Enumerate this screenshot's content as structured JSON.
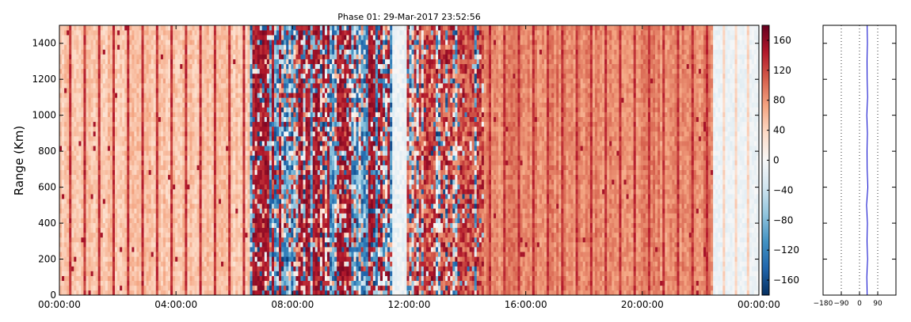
{
  "chart_data": [
    {
      "type": "heatmap",
      "title": "Phase 01: 29-Mar-2017 23:52:56",
      "xlabel": "",
      "ylabel": "Range (Km)",
      "xlim": [
        "00:00:00",
        "00:00:00"
      ],
      "x_ticks": [
        "00:00:00",
        "04:00:00",
        "08:00:00",
        "12:00:00",
        "16:00:00",
        "20:00:00",
        "00:00:00"
      ],
      "ylim": [
        0,
        1500
      ],
      "y_ticks": [
        0,
        200,
        400,
        600,
        800,
        1000,
        1200,
        1400
      ],
      "colorbar": {
        "cmap": "RdBu_r",
        "range": [
          -180,
          180
        ],
        "ticks": [
          -160,
          -120,
          -80,
          -40,
          0,
          40,
          80,
          120,
          160
        ]
      },
      "bands_approx_phase_deg": [
        {
          "from_hour": 0.0,
          "to_hour": 6.5,
          "mean": 45,
          "note": "light red with darker red stripes ~ every 0.5h"
        },
        {
          "from_hour": 6.5,
          "to_hour": 11.4,
          "mean": 0,
          "note": "highly mixed red/blue columns"
        },
        {
          "from_hour": 11.4,
          "to_hour": 14.5,
          "mean": 90,
          "note": "mixed mostly red"
        },
        {
          "from_hour": 14.5,
          "to_hour": 22.4,
          "mean": 80,
          "note": "red/orange with dark stripes"
        },
        {
          "from_hour": 22.4,
          "to_hour": 24.0,
          "mean": 0,
          "note": "near-zero, light blue/white"
        }
      ],
      "grid": false,
      "legend": "none"
    },
    {
      "type": "line",
      "title": "",
      "xlabel": "",
      "ylabel": "",
      "xlim": [
        -180,
        180
      ],
      "x_ticks": [
        -180,
        -90,
        0,
        90
      ],
      "ylim": [
        0,
        1500
      ],
      "vertical_reference_lines": [
        -90,
        0,
        90
      ],
      "series": [
        {
          "x": [
            38,
            36,
            40,
            37,
            39,
            35,
            41,
            38,
            37,
            39,
            36,
            40,
            38,
            37,
            39,
            38
          ],
          "y": [
            0,
            100,
            200,
            300,
            400,
            500,
            600,
            700,
            800,
            900,
            1000,
            1100,
            1200,
            1300,
            1400,
            1500
          ],
          "color": "#0000cc"
        }
      ],
      "grid": false
    }
  ]
}
